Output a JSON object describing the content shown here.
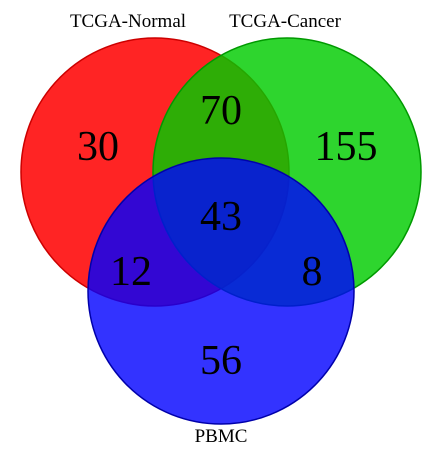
{
  "diagram": {
    "type": "venn-3",
    "sets": [
      {
        "key": "normal",
        "name": "TCGA-Normal",
        "color": "#ff0000"
      },
      {
        "key": "cancer",
        "name": "TCGA-Cancer",
        "color": "#00dd00"
      },
      {
        "key": "pbmc",
        "name": "PBMC",
        "color": "#0000ff"
      }
    ],
    "regions": {
      "normal_only": "30",
      "cancer_only": "155",
      "pbmc_only": "56",
      "normal_cancer": "70",
      "normal_pbmc": "12",
      "cancer_pbmc": "8",
      "all_three": "43"
    }
  }
}
